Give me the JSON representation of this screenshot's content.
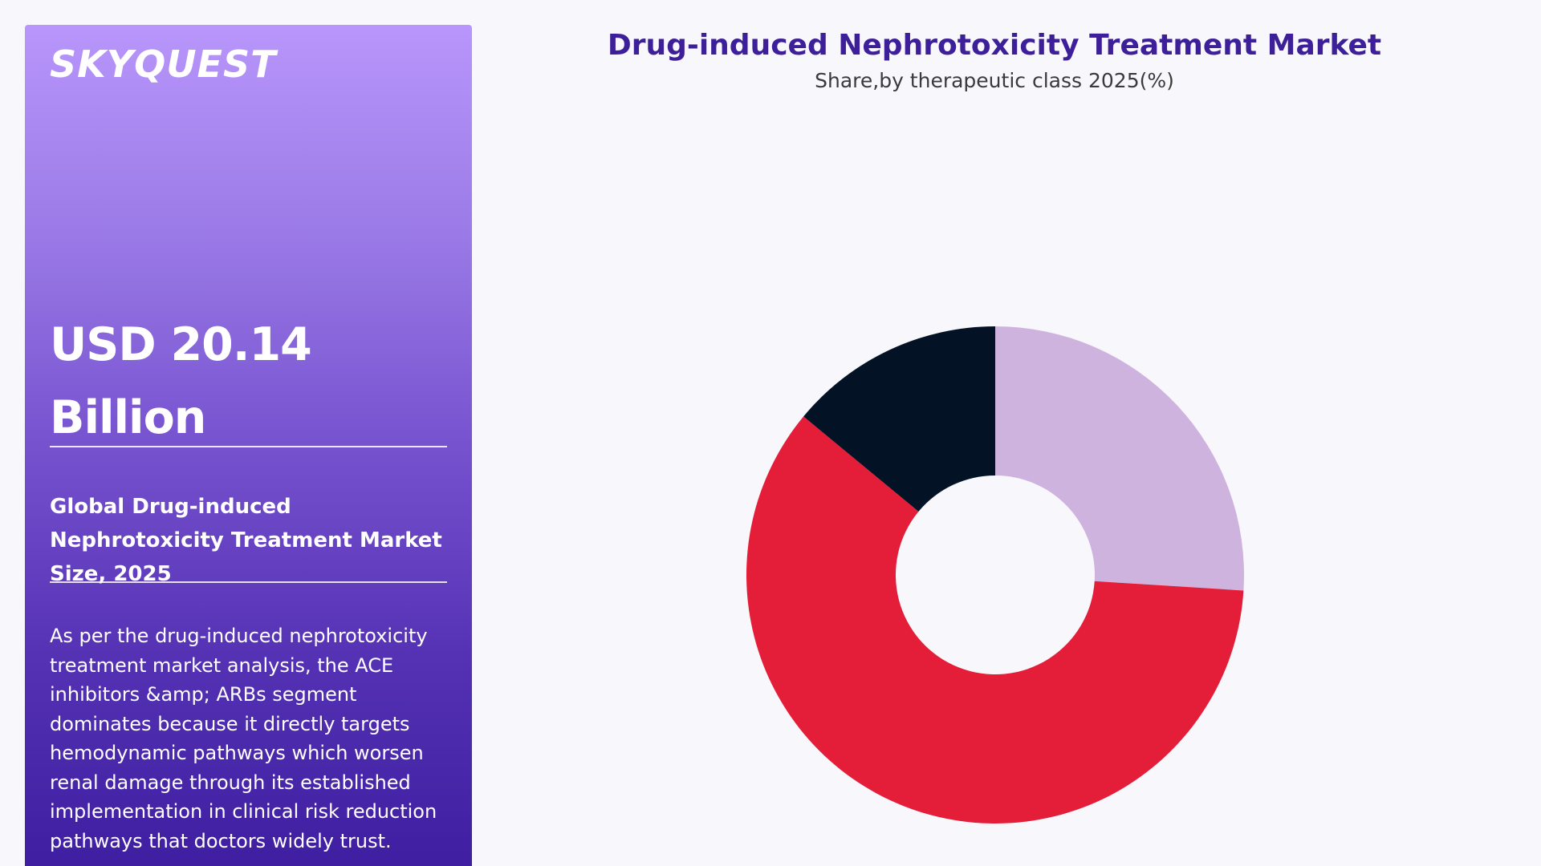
{
  "brand": {
    "logo_text": "SKYQUEST"
  },
  "sidebar": {
    "market_value": "USD 20.14 Billion",
    "market_label": "Global Drug-induced Nephrotoxicity Treatment Market Size, 2025",
    "description": "As per the drug-induced nephrotoxicity treatment market analysis, the ACE inhibitors &amp; ARBs segment dominates because it directly targets hemodynamic pathways which worsen renal damage through its established implementation in clinical risk reduction pathways that doctors widely trust."
  },
  "chart_data": {
    "type": "pie",
    "title": "Drug-induced Nephrotoxicity Treatment Market",
    "subtitle": "Share,by therapeutic class 2025(%)",
    "donut": true,
    "start_angle_deg": 0,
    "direction": "clockwise",
    "values": [
      26,
      60,
      14
    ],
    "colors": [
      "#cfb3df",
      "#e41e38",
      "#031325"
    ]
  }
}
